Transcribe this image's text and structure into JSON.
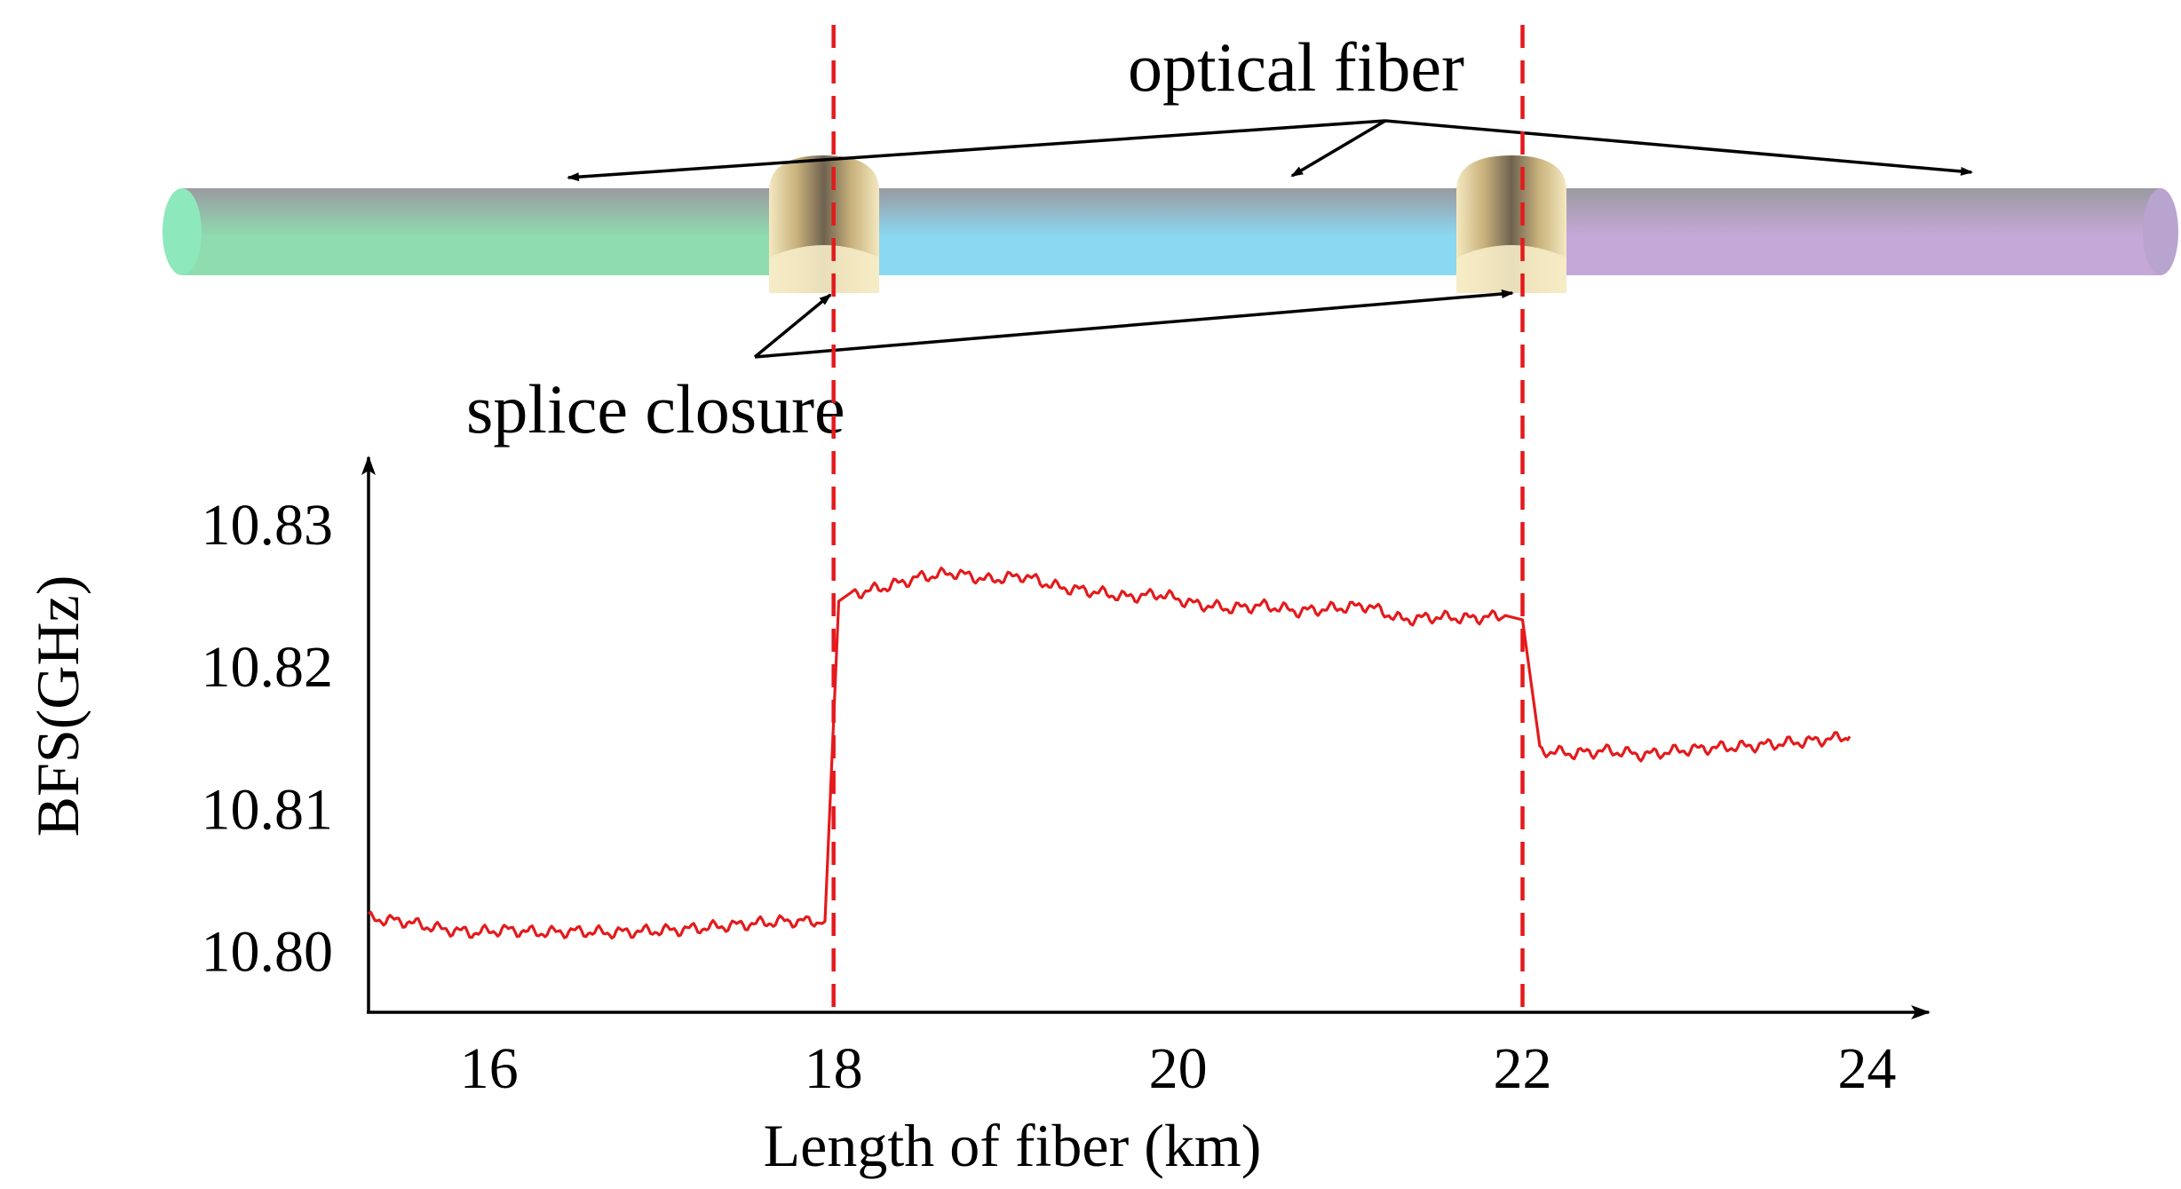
{
  "labels": {
    "fiber": "optical fiber",
    "closure": "splice closure"
  },
  "colors": {
    "trace": "#e41a1c",
    "marker": "#e41a1c",
    "fiber_segments": [
      "#8fdcb0",
      "#8ad8f2",
      "#c6a8d8"
    ],
    "closure": "#e8d49a"
  },
  "chart_data": {
    "type": "line",
    "xlabel": "Length of fiber (km)",
    "ylabel": "BFS(GHz)",
    "xlim": [
      15.3,
      24.4
    ],
    "ylim": [
      10.7956,
      10.834
    ],
    "x_ticks": [
      {
        "value": 16,
        "label": "16"
      },
      {
        "value": 18,
        "label": "18"
      },
      {
        "value": 20,
        "label": "20"
      },
      {
        "value": 22,
        "label": "22"
      },
      {
        "value": 24,
        "label": "24"
      }
    ],
    "y_ticks": [
      {
        "value": 10.8,
        "label": "10.80"
      },
      {
        "value": 10.81,
        "label": "10.81"
      },
      {
        "value": 10.82,
        "label": "10.82"
      },
      {
        "value": 10.83,
        "label": "10.83"
      }
    ],
    "splice_positions_km": [
      18.0,
      22.0
    ],
    "series": [
      {
        "x": [
          15.3,
          15.5,
          15.7,
          15.9,
          16.1,
          16.3,
          16.5,
          16.7,
          16.9,
          17.1,
          17.3,
          17.5,
          17.7,
          17.95,
          18.03,
          18.1,
          18.3,
          18.5,
          18.7,
          18.9,
          19.1,
          19.3,
          19.5,
          19.7,
          19.9,
          20.1,
          20.3,
          20.5,
          20.7,
          20.9,
          21.1,
          21.3,
          21.5,
          21.7,
          21.9,
          22.0,
          22.1,
          22.3,
          22.5,
          22.7,
          22.9,
          23.1,
          23.3,
          23.5,
          23.7,
          23.9
        ],
        "y": [
          10.8022,
          10.802,
          10.8015,
          10.8012,
          10.8014,
          10.8012,
          10.8013,
          10.8012,
          10.8013,
          10.8014,
          10.8016,
          10.8018,
          10.802,
          10.802,
          10.8245,
          10.825,
          10.8255,
          10.8262,
          10.8265,
          10.826,
          10.8263,
          10.8255,
          10.8252,
          10.8248,
          10.825,
          10.8243,
          10.824,
          10.8242,
          10.8238,
          10.824,
          10.8242,
          10.8232,
          10.8234,
          10.8233,
          10.8235,
          10.8232,
          10.814,
          10.8138,
          10.814,
          10.8137,
          10.814,
          10.8142,
          10.8143,
          10.8145,
          10.8147,
          10.815
        ]
      }
    ]
  }
}
